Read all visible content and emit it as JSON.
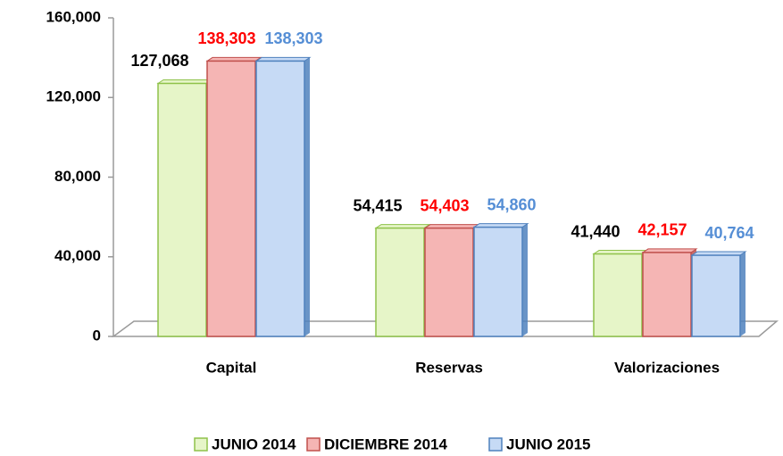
{
  "chart_data": {
    "type": "bar",
    "categories": [
      "Capital",
      "Reservas",
      "Valorizaciones"
    ],
    "series": [
      {
        "name": "JUNIO 2014",
        "color": "#8fc24a",
        "fill": "#e6f5c8",
        "label_color": "#000000",
        "values": [
          127068,
          54415,
          41440
        ],
        "value_labels": [
          "127,068",
          "54,415",
          "41,440"
        ]
      },
      {
        "name": "DICIEMBRE 2014",
        "color": "#c0504d",
        "fill": "#f5b5b4",
        "label_color": "#ff0000",
        "values": [
          138303,
          54403,
          42157
        ],
        "value_labels": [
          "138,303",
          "54,403",
          "42,157"
        ]
      },
      {
        "name": "JUNIO 2015",
        "color": "#4f81bd",
        "fill": "#c6daf5",
        "label_color": "#558ed5",
        "values": [
          138303,
          54860,
          40764
        ],
        "value_labels": [
          "138,303",
          "54,860",
          "40,764"
        ]
      }
    ],
    "ylim": [
      0,
      160000
    ],
    "yticks": [
      0,
      {
        "value": 40000,
        "label": "40,000"
      },
      {
        "value": 80000,
        "label": "80,000"
      },
      {
        "value": 120000,
        "label": "120,000"
      },
      {
        "value": 160000,
        "label": "160,000"
      }
    ],
    "grid": false,
    "legend": "bottom"
  }
}
